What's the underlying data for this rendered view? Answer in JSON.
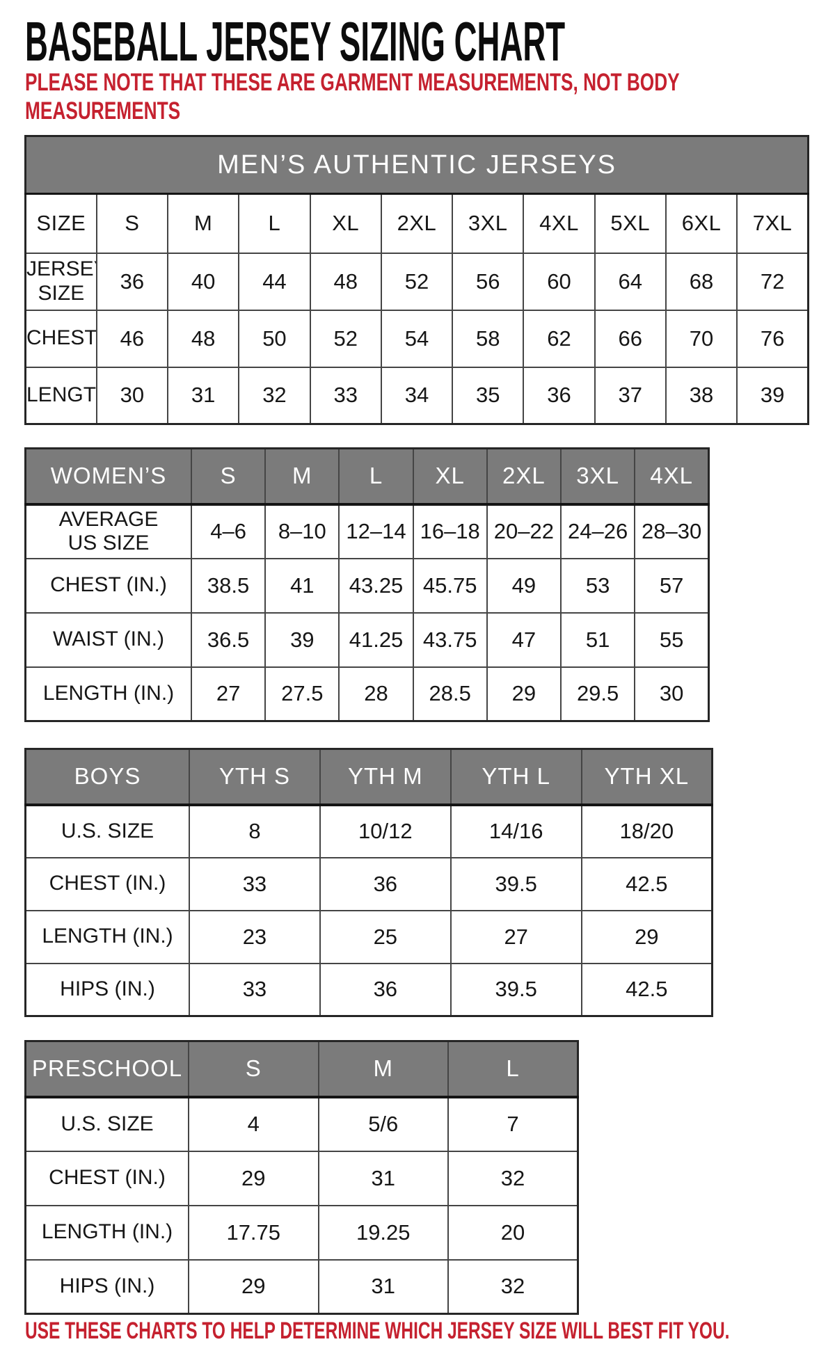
{
  "page": {
    "title": "BASEBALL JERSEY SIZING CHART",
    "note": "PLEASE NOTE THAT THESE ARE GARMENT MEASUREMENTS, NOT BODY\nMEASUREMENTS",
    "footer": "USE THESE CHARTS TO HELP DETERMINE WHICH JERSEY SIZE WILL BEST FIT YOU."
  },
  "colors": {
    "header_gray": "#7b7b7b",
    "accent_red": "#c5212f",
    "text_black": "#161616",
    "grid_border": "#454545"
  },
  "tables": [
    {
      "id": "mens",
      "banner": "MEN’S AUTHENTIC JERSEYS",
      "columns": [
        "SIZE",
        "S",
        "M",
        "L",
        "XL",
        "2XL",
        "3XL",
        "4XL",
        "5XL",
        "6XL",
        "7XL"
      ],
      "rows": [
        {
          "label": "JERSEY SIZE",
          "values": [
            "36",
            "40",
            "44",
            "48",
            "52",
            "56",
            "60",
            "64",
            "68",
            "72"
          ]
        },
        {
          "label": "CHEST(IN.)",
          "values": [
            "46",
            "48",
            "50",
            "52",
            "54",
            "58",
            "62",
            "66",
            "70",
            "76"
          ]
        },
        {
          "label": "LENGTH(IN.)",
          "values": [
            "30",
            "31",
            "32",
            "33",
            "34",
            "35",
            "36",
            "37",
            "38",
            "39"
          ]
        }
      ]
    },
    {
      "id": "womens",
      "columns": [
        "WOMEN’S",
        "S",
        "M",
        "L",
        "XL",
        "2XL",
        "3XL",
        "4XL"
      ],
      "rows": [
        {
          "label": "AVERAGE\nUS SIZE",
          "values": [
            "4–6",
            "8–10",
            "12–14",
            "16–18",
            "20–22",
            "24–26",
            "28–30"
          ]
        },
        {
          "label": "CHEST (IN.)",
          "values": [
            "38.5",
            "41",
            "43.25",
            "45.75",
            "49",
            "53",
            "57"
          ]
        },
        {
          "label": "WAIST (IN.)",
          "values": [
            "36.5",
            "39",
            "41.25",
            "43.75",
            "47",
            "51",
            "55"
          ]
        },
        {
          "label": "LENGTH (IN.)",
          "values": [
            "27",
            "27.5",
            "28",
            "28.5",
            "29",
            "29.5",
            "30"
          ]
        }
      ]
    },
    {
      "id": "boys",
      "columns": [
        "BOYS",
        "YTH S",
        "YTH M",
        "YTH L",
        "YTH XL"
      ],
      "rows": [
        {
          "label": "U.S. SIZE",
          "values": [
            "8",
            "10/12",
            "14/16",
            "18/20"
          ]
        },
        {
          "label": "CHEST (IN.)",
          "values": [
            "33",
            "36",
            "39.5",
            "42.5"
          ]
        },
        {
          "label": "LENGTH (IN.)",
          "values": [
            "23",
            "25",
            "27",
            "29"
          ]
        },
        {
          "label": "HIPS (IN.)",
          "values": [
            "33",
            "36",
            "39.5",
            "42.5"
          ]
        }
      ]
    },
    {
      "id": "preschool",
      "columns": [
        "PRESCHOOL",
        "S",
        "M",
        "L"
      ],
      "rows": [
        {
          "label": "U.S. SIZE",
          "values": [
            "4",
            "5/6",
            "7"
          ]
        },
        {
          "label": "CHEST (IN.)",
          "values": [
            "29",
            "31",
            "32"
          ]
        },
        {
          "label": "LENGTH (IN.)",
          "values": [
            "17.75",
            "19.25",
            "20"
          ]
        },
        {
          "label": "HIPS (IN.)",
          "values": [
            "29",
            "31",
            "32"
          ]
        }
      ]
    }
  ]
}
